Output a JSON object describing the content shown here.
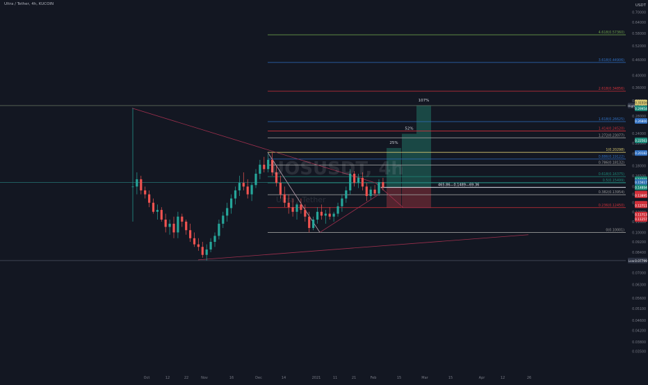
{
  "header": {
    "title": "Ultra / Tether, 4h, KUCOIN",
    "currency": "USDT"
  },
  "watermark": {
    "symbol": "UOSUSDT, 4h",
    "name": "Ultra / Tether"
  },
  "colors": {
    "background": "#131722",
    "up": "#26a69a",
    "down": "#ef5350",
    "trendline": "#a0304e",
    "fib_green": "#6a9a4a",
    "fib_blue": "#2f6fc1",
    "fib_red": "#d0303a",
    "fib_white": "#9a9a9a",
    "fib_teal": "#1e8a7a",
    "fib_yellow": "#d8c870"
  },
  "chart_data": {
    "type": "candlestick",
    "title": "Ultra / Tether, 4h, KUCOIN",
    "xlabel": "",
    "ylabel": "",
    "y_scale": "log",
    "ylim": [
      0.029,
      0.78
    ],
    "x_ticks": [
      "Oct",
      "12",
      "22",
      "Nov",
      "16",
      "Dec",
      "14",
      "2021",
      "11",
      "21",
      "Feb",
      "15",
      "Mar",
      "15",
      "Apr",
      "12",
      "26"
    ],
    "y_ticks": [
      "0.70000",
      "0.64000",
      "0.58000",
      "0.52000",
      "0.46000",
      "0.40000",
      "0.36000",
      "0.32000",
      "0.28000",
      "0.24000",
      "0.22000",
      "0.20000",
      "0.18000",
      "0.16500",
      "0.15000",
      "0.14000",
      "0.13000",
      "0.12000",
      "0.11000",
      "0.10000",
      "0.09200",
      "0.08400",
      "0.07700",
      "0.07000",
      "0.06300",
      "0.05600",
      "0.05100",
      "0.04600",
      "0.04200",
      "0.03800",
      "0.03500"
    ],
    "price_tags": [
      {
        "label": "High",
        "value": "0.30683"
      },
      {
        "label": "",
        "value": "0.29954"
      },
      {
        "label": "",
        "value": "0.31516"
      },
      {
        "label": "",
        "value": "0.22563"
      },
      {
        "label": "",
        "value": "0.20182"
      },
      {
        "label": "",
        "value": "0.26800"
      },
      {
        "label": "",
        "value": "0.16001"
      },
      {
        "label": "",
        "value": "0.15617"
      },
      {
        "label": "",
        "value": "0.14894"
      },
      {
        "label": "",
        "value": "0.14094"
      },
      {
        "label": "",
        "value": "0.13895"
      },
      {
        "label": "",
        "value": "0.12876"
      },
      {
        "label": "",
        "value": "0.12711"
      },
      {
        "label": "",
        "value": "0.11713"
      },
      {
        "label": "",
        "value": "0.11257"
      },
      {
        "label": "Low",
        "value": "0.07799"
      }
    ],
    "fib_levels": [
      {
        "label": "4.618(0.57360)",
        "value": 0.5736,
        "color": "#6a9a4a"
      },
      {
        "label": "3.618(0.44906)",
        "value": 0.44906,
        "color": "#2f6fc1"
      },
      {
        "label": "2.618(0.34856)",
        "value": 0.34856,
        "color": "#d0303a"
      },
      {
        "label": "1.618(0.26625)",
        "value": 0.26625,
        "color": "#2f6fc1"
      },
      {
        "label": "1.414(0.24520)",
        "value": 0.2452,
        "color": "#d0303a"
      },
      {
        "label": "1.272(0.23077)",
        "value": 0.23077,
        "color": "#9a9a9a"
      },
      {
        "label": "1(0.20298)",
        "value": 0.20298,
        "color": "#d8c870"
      },
      {
        "label": "0.886(0.19122)",
        "value": 0.19122,
        "color": "#2f6fc1"
      },
      {
        "label": "0.786(0.18132)",
        "value": 0.18132,
        "color": "#9a9a9a"
      },
      {
        "label": "0.618(0.16375)",
        "value": 0.16375,
        "color": "#1e8a7a"
      },
      {
        "label": "0.5(0.15499)",
        "value": 0.15499,
        "color": "#1e8a7a"
      },
      {
        "label": "0.382(0.13954)",
        "value": 0.13954,
        "color": "#9a9a9a"
      },
      {
        "label": "0.236(0.12450)",
        "value": 0.1245,
        "color": "#d0303a"
      },
      {
        "label": "0(0.10001)",
        "value": 0.10001,
        "color": "#9a9a9a"
      }
    ],
    "targets": [
      {
        "label": "25%",
        "value": 0.2109
      },
      {
        "label": "52%",
        "value": 0.2391
      },
      {
        "label": "107%",
        "value": 0.3068
      }
    ],
    "measure_label": "465.86—0.1489—69.36",
    "candles": [
      [
        0.15,
        0.3,
        0.11,
        0.15
      ],
      [
        0.15,
        0.17,
        0.14,
        0.16
      ],
      [
        0.16,
        0.165,
        0.14,
        0.145
      ],
      [
        0.145,
        0.15,
        0.135,
        0.14
      ],
      [
        0.14,
        0.145,
        0.125,
        0.13
      ],
      [
        0.13,
        0.135,
        0.118,
        0.12
      ],
      [
        0.12,
        0.128,
        0.112,
        0.122
      ],
      [
        0.122,
        0.125,
        0.11,
        0.112
      ],
      [
        0.112,
        0.118,
        0.1,
        0.105
      ],
      [
        0.105,
        0.112,
        0.098,
        0.108
      ],
      [
        0.108,
        0.115,
        0.095,
        0.1
      ],
      [
        0.1,
        0.12,
        0.095,
        0.115
      ],
      [
        0.115,
        0.118,
        0.105,
        0.11
      ],
      [
        0.11,
        0.112,
        0.098,
        0.102
      ],
      [
        0.102,
        0.108,
        0.092,
        0.095
      ],
      [
        0.095,
        0.1,
        0.088,
        0.09
      ],
      [
        0.09,
        0.095,
        0.085,
        0.088
      ],
      [
        0.088,
        0.092,
        0.08,
        0.082
      ],
      [
        0.082,
        0.09,
        0.078,
        0.086
      ],
      [
        0.086,
        0.095,
        0.084,
        0.092
      ],
      [
        0.092,
        0.1,
        0.088,
        0.097
      ],
      [
        0.097,
        0.112,
        0.094,
        0.108
      ],
      [
        0.108,
        0.12,
        0.104,
        0.116
      ],
      [
        0.116,
        0.13,
        0.11,
        0.124
      ],
      [
        0.124,
        0.14,
        0.118,
        0.135
      ],
      [
        0.135,
        0.15,
        0.128,
        0.145
      ],
      [
        0.145,
        0.165,
        0.138,
        0.155
      ],
      [
        0.155,
        0.17,
        0.145,
        0.15
      ],
      [
        0.15,
        0.16,
        0.135,
        0.14
      ],
      [
        0.14,
        0.155,
        0.132,
        0.152
      ],
      [
        0.152,
        0.175,
        0.148,
        0.168
      ],
      [
        0.168,
        0.19,
        0.16,
        0.182
      ],
      [
        0.182,
        0.195,
        0.17,
        0.175
      ],
      [
        0.175,
        0.2,
        0.17,
        0.19
      ],
      [
        0.19,
        0.203,
        0.165,
        0.17
      ],
      [
        0.17,
        0.18,
        0.15,
        0.155
      ],
      [
        0.155,
        0.165,
        0.135,
        0.14
      ],
      [
        0.14,
        0.15,
        0.125,
        0.13
      ],
      [
        0.13,
        0.14,
        0.118,
        0.125
      ],
      [
        0.125,
        0.135,
        0.115,
        0.12
      ],
      [
        0.12,
        0.13,
        0.112,
        0.128
      ],
      [
        0.128,
        0.135,
        0.118,
        0.122
      ],
      [
        0.122,
        0.128,
        0.11,
        0.115
      ],
      [
        0.115,
        0.12,
        0.1,
        0.104
      ],
      [
        0.104,
        0.115,
        0.102,
        0.112
      ],
      [
        0.112,
        0.125,
        0.108,
        0.12
      ],
      [
        0.12,
        0.128,
        0.112,
        0.116
      ],
      [
        0.116,
        0.122,
        0.108,
        0.118
      ],
      [
        0.118,
        0.125,
        0.112,
        0.115
      ],
      [
        0.115,
        0.12,
        0.11,
        0.118
      ],
      [
        0.118,
        0.13,
        0.115,
        0.126
      ],
      [
        0.126,
        0.14,
        0.12,
        0.135
      ],
      [
        0.135,
        0.15,
        0.13,
        0.145
      ],
      [
        0.145,
        0.175,
        0.14,
        0.168
      ],
      [
        0.168,
        0.172,
        0.15,
        0.155
      ],
      [
        0.155,
        0.168,
        0.148,
        0.162
      ],
      [
        0.162,
        0.17,
        0.145,
        0.15
      ],
      [
        0.15,
        0.155,
        0.132,
        0.138
      ],
      [
        0.138,
        0.15,
        0.134,
        0.146
      ],
      [
        0.146,
        0.152,
        0.138,
        0.141
      ],
      [
        0.141,
        0.16,
        0.138,
        0.156
      ],
      [
        0.156,
        0.162,
        0.145,
        0.149
      ]
    ]
  }
}
